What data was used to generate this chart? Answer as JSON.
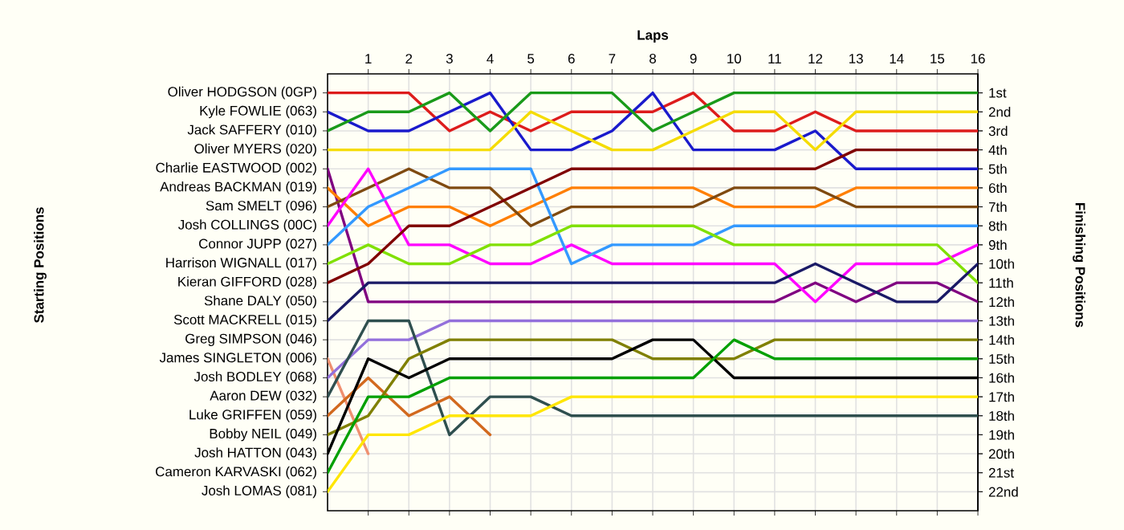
{
  "chart_data": {
    "type": "line",
    "xlabel": "Laps",
    "annotations": [
      "Starting Positions"
    ],
    "y2label": "Finishing Positions",
    "x": [
      0,
      1,
      2,
      3,
      4,
      5,
      6,
      7,
      8,
      9,
      10,
      11,
      12,
      13,
      14,
      15,
      16
    ],
    "xlim": [
      0,
      16
    ],
    "xticks": [
      1,
      2,
      3,
      4,
      5,
      6,
      7,
      8,
      9,
      10,
      11,
      12,
      13,
      14,
      15,
      16
    ],
    "y_categories": [
      "Oliver HODGSON (0GP)",
      "Kyle FOWLIE (063)",
      "Jack SAFFERY (010)",
      "Oliver MYERS (020)",
      "Charlie EASTWOOD (002)",
      "Andreas BACKMAN (019)",
      "Sam SMELT (096)",
      "Josh COLLINGS (00C)",
      "Connor JUPP (027)",
      "Harrison WIGNALL (017)",
      "Kieran GIFFORD (028)",
      "Shane DALY (050)",
      "Scott MACKRELL (015)",
      "Greg SIMPSON (046)",
      "James SINGLETON (006)",
      "Josh BODLEY (068)",
      "Aaron DEW (032)",
      "Luke GRIFFEN (059)",
      "Bobby NEIL (049)",
      "Josh HATTON (043)",
      "Cameron KARVASKI (062)",
      "Josh LOMAS (081)"
    ],
    "y2lim": [
      23,
      0
    ],
    "y2ticks": [
      {
        "value": 1,
        "label": "1st"
      },
      {
        "value": 2,
        "label": "2nd"
      },
      {
        "value": 3,
        "label": "3rd"
      },
      {
        "value": 4,
        "label": "4th"
      },
      {
        "value": 5,
        "label": "5th"
      },
      {
        "value": 6,
        "label": "6th"
      },
      {
        "value": 7,
        "label": "7th"
      },
      {
        "value": 8,
        "label": "8th"
      },
      {
        "value": 9,
        "label": "9th"
      },
      {
        "value": 10,
        "label": "10th"
      },
      {
        "value": 11,
        "label": "11th"
      },
      {
        "value": 12,
        "label": "12th"
      },
      {
        "value": 13,
        "label": "13th"
      },
      {
        "value": 14,
        "label": "14th"
      },
      {
        "value": 15,
        "label": "15th"
      },
      {
        "value": 16,
        "label": "16th"
      },
      {
        "value": 17,
        "label": "17th"
      },
      {
        "value": 18,
        "label": "18th"
      },
      {
        "value": 19,
        "label": "19th"
      },
      {
        "value": 20,
        "label": "20th"
      },
      {
        "value": 21,
        "label": "21st"
      },
      {
        "value": 22,
        "label": "22nd"
      }
    ],
    "grid": true,
    "series": [
      {
        "axis": "y2",
        "color": "#dd1c1c",
        "values": [
          1,
          1,
          1,
          3,
          2,
          3,
          2,
          2,
          2,
          1,
          3,
          3,
          2,
          3,
          3,
          3,
          3
        ]
      },
      {
        "axis": "y2",
        "color": "#1a1acc",
        "values": [
          2,
          3,
          3,
          2,
          1,
          4,
          4,
          3,
          1,
          4,
          4,
          4,
          3,
          5,
          5,
          5,
          5
        ]
      },
      {
        "axis": "y2",
        "color": "#1a9a1a",
        "values": [
          3,
          2,
          2,
          1,
          3,
          1,
          1,
          1,
          3,
          2,
          1,
          1,
          1,
          1,
          1,
          1,
          1
        ]
      },
      {
        "axis": "y2",
        "color": "#f5dc00",
        "values": [
          4,
          4,
          4,
          4,
          4,
          2,
          3,
          4,
          4,
          3,
          2,
          2,
          4,
          2,
          2,
          2,
          2
        ]
      },
      {
        "axis": "y2",
        "color": "#800080",
        "values": [
          5,
          12,
          12,
          12,
          12,
          12,
          12,
          12,
          12,
          12,
          12,
          12,
          11,
          12,
          11,
          11,
          12
        ]
      },
      {
        "axis": "y2",
        "color": "#ff7f00",
        "values": [
          6,
          8,
          7,
          7,
          8,
          7,
          6,
          6,
          6,
          6,
          7,
          7,
          7,
          6,
          6,
          6,
          6
        ]
      },
      {
        "axis": "y2",
        "color": "#7f4a10",
        "values": [
          7,
          6,
          5,
          6,
          6,
          8,
          7,
          7,
          7,
          7,
          6,
          6,
          6,
          7,
          7,
          7,
          7
        ]
      },
      {
        "axis": "y2",
        "color": "#ff00ff",
        "values": [
          8,
          5,
          9,
          9,
          10,
          10,
          9,
          10,
          10,
          10,
          10,
          10,
          12,
          10,
          10,
          10,
          9
        ]
      },
      {
        "axis": "y2",
        "color": "#3399ff",
        "values": [
          9,
          7,
          6,
          5,
          5,
          5,
          10,
          9,
          9,
          9,
          8,
          8,
          8,
          8,
          8,
          8,
          8
        ]
      },
      {
        "axis": "y2",
        "color": "#80e000",
        "values": [
          10,
          9,
          10,
          10,
          9,
          9,
          8,
          8,
          8,
          8,
          9,
          9,
          9,
          9,
          9,
          9,
          11
        ]
      },
      {
        "axis": "y2",
        "color": "#800000",
        "values": [
          11,
          10,
          8,
          8,
          7,
          6,
          5,
          5,
          5,
          5,
          5,
          5,
          5,
          4,
          4,
          4,
          4
        ]
      },
      {
        "axis": "y2",
        "color": "#1a1a66",
        "values": [
          13,
          11,
          11,
          11,
          11,
          11,
          11,
          11,
          11,
          11,
          11,
          11,
          10,
          11,
          12,
          12,
          10
        ]
      },
      {
        "axis": "y2",
        "color": "#f09070",
        "values": [
          15,
          20,
          null,
          null,
          null,
          null,
          null,
          null,
          null,
          null,
          null,
          null,
          null,
          null,
          null,
          null,
          null
        ]
      },
      {
        "axis": "y2",
        "color": "#9370db",
        "values": [
          16,
          14,
          14,
          13,
          13,
          13,
          13,
          13,
          13,
          13,
          13,
          13,
          13,
          13,
          13,
          13,
          13
        ]
      },
      {
        "axis": "y2",
        "color": "#2f4f4f",
        "values": [
          17,
          13,
          13,
          19,
          17,
          17,
          18,
          18,
          18,
          18,
          18,
          18,
          18,
          18,
          18,
          18,
          18
        ]
      },
      {
        "axis": "y2",
        "color": "#d2691e",
        "values": [
          18,
          16,
          18,
          17,
          19,
          null,
          null,
          null,
          null,
          null,
          null,
          null,
          null,
          null,
          null,
          null,
          null
        ]
      },
      {
        "axis": "y2",
        "color": "#808000",
        "values": [
          19,
          18,
          15,
          14,
          14,
          14,
          14,
          14,
          15,
          15,
          15,
          14,
          14,
          14,
          14,
          14,
          14
        ]
      },
      {
        "axis": "y2",
        "color": "#000000",
        "values": [
          20,
          15,
          16,
          15,
          15,
          15,
          15,
          15,
          14,
          14,
          16,
          16,
          16,
          16,
          16,
          16,
          16
        ]
      },
      {
        "axis": "y2",
        "color": "#00a000",
        "values": [
          21,
          17,
          17,
          16,
          16,
          16,
          16,
          16,
          16,
          16,
          14,
          15,
          15,
          15,
          15,
          15,
          15
        ]
      },
      {
        "axis": "y2",
        "color": "#ffe600",
        "values": [
          22,
          19,
          19,
          18,
          18,
          18,
          17,
          17,
          17,
          17,
          17,
          17,
          17,
          17,
          17,
          17,
          17
        ]
      }
    ]
  }
}
